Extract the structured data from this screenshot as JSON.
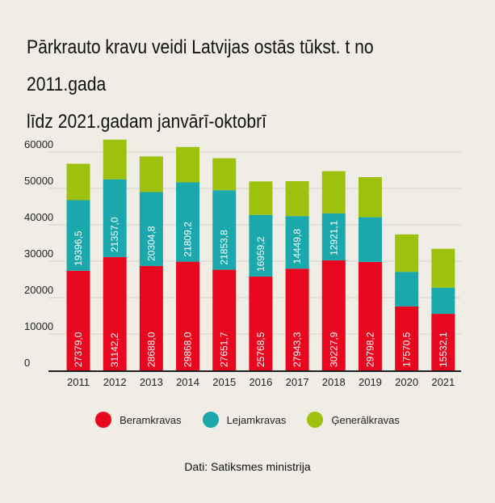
{
  "title_line1": "Pārkrauto kravu veidi Latvijas ostās tūkst. t  no 2011.gada",
  "title_line2": "līdz 2021.gadam janvārī-oktobrī",
  "source": "Dati: Satiksmes ministrija",
  "colors": {
    "beramkravas": "#e8071e",
    "lejamkravas": "#1aa8ad",
    "generalkravas": "#9dc10c",
    "grid": "#d6d4cc",
    "axis": "#222222"
  },
  "chart_data": {
    "type": "bar",
    "stacked": true,
    "title": "Pārkrauto kravu veidi Latvijas ostās tūkst. t  no 2011.gada līdz 2021.gadam janvārī-oktobrī",
    "xlabel": "",
    "ylabel": "",
    "categories": [
      "2011",
      "2012",
      "2013",
      "2014",
      "2015",
      "2016",
      "2017",
      "2018",
      "2019",
      "2020",
      "2021"
    ],
    "ylim": [
      0,
      60000
    ],
    "yticks": [
      0,
      10000,
      20000,
      30000,
      40000,
      50000,
      60000
    ],
    "grid": true,
    "legend_position": "bottom",
    "series": [
      {
        "name": "Beramkravas",
        "color": "#e8071e",
        "values": [
          27379.0,
          31142.2,
          28688.0,
          29868.0,
          27651.7,
          25768.5,
          27943.3,
          30227.9,
          29798.2,
          17570.5,
          15532.1
        ],
        "labels": [
          "27379,0",
          "31142,2",
          "28688,0",
          "29868,0",
          "27651,7",
          "25768,5",
          "27943,3",
          "30227,9",
          "29798,2",
          "17570,5",
          "15532,1"
        ]
      },
      {
        "name": "Lejamkravas",
        "color": "#1aa8ad",
        "values": [
          19396.5,
          21357.0,
          20304.8,
          21809.2,
          21853.8,
          16959.2,
          14449.8,
          12921.1,
          12300,
          9500,
          7200
        ],
        "labels": [
          "19396,5",
          "21357,0",
          "20304,8",
          "21809,2",
          "21853,8",
          "16959,2",
          "14449,8",
          "12921,1",
          "",
          "",
          ""
        ]
      },
      {
        "name": "Ģenerālkravas",
        "color": "#9dc10c",
        "values": [
          10000,
          10900,
          9800,
          9700,
          8800,
          9200,
          9600,
          11600,
          11000,
          10300,
          10700
        ],
        "labels": [
          "",
          "",
          "",
          "",
          "",
          "",
          "",
          "",
          "",
          "",
          ""
        ]
      }
    ]
  }
}
